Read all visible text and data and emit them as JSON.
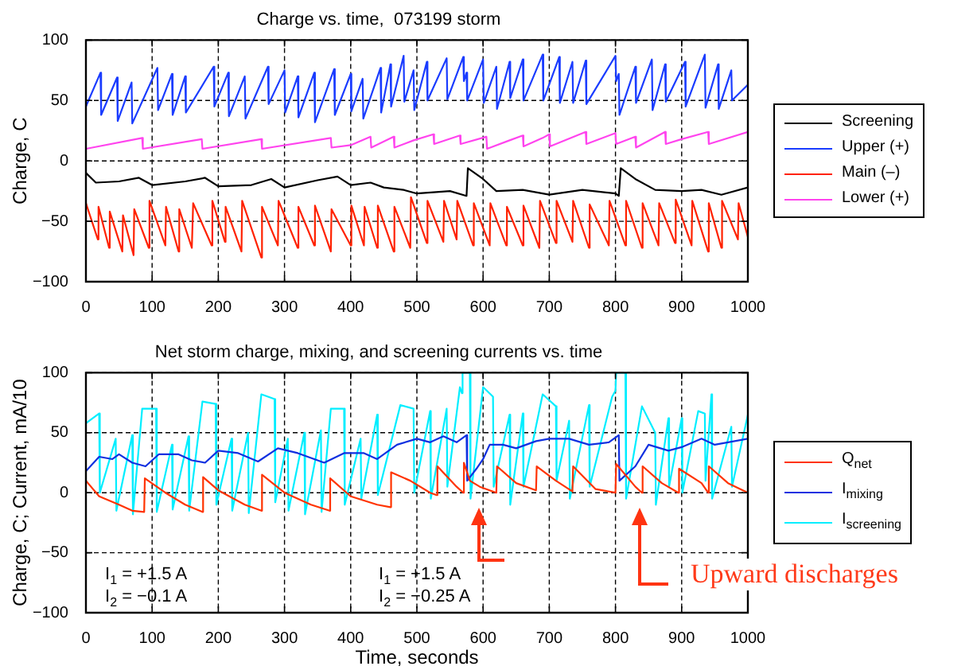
{
  "chart_data": [
    {
      "type": "line",
      "title": "Charge vs. time,  073199 storm",
      "ylabel": "Charge, C",
      "xlim": [
        0,
        1000
      ],
      "xticks": [
        0,
        100,
        200,
        300,
        400,
        500,
        600,
        700,
        800,
        900,
        1000
      ],
      "ylim": [
        -100,
        100
      ],
      "yticks": [
        -100,
        -50,
        0,
        50,
        100
      ],
      "grid": true,
      "legend": "right",
      "marker": "none",
      "series": [
        {
          "name": "Screening",
          "color": "#000000",
          "x": [
            0,
            15,
            50,
            80,
            100,
            150,
            180,
            200,
            250,
            280,
            300,
            350,
            380,
            400,
            430,
            450,
            480,
            500,
            550,
            575,
            577,
            600,
            620,
            660,
            700,
            750,
            800,
            805,
            808,
            830,
            860,
            900,
            930,
            960,
            1000
          ],
          "values": [
            -10,
            -18,
            -17,
            -14,
            -20,
            -17,
            -14,
            -21,
            -20,
            -15,
            -22,
            -16,
            -13,
            -20,
            -18,
            -22,
            -24,
            -27,
            -25,
            -29,
            -6,
            -15,
            -25,
            -24,
            -28,
            -24,
            -27,
            -29,
            -6,
            -15,
            -24,
            -25,
            -24,
            -28,
            -22
          ]
        },
        {
          "name": "Upper (+)",
          "color": "#1a3cff",
          "x": [
            0,
            22,
            23,
            47,
            48,
            69,
            70,
            108,
            109,
            130,
            131,
            150,
            151,
            193,
            194,
            215,
            216,
            240,
            241,
            275,
            276,
            300,
            301,
            320,
            321,
            345,
            346,
            375,
            376,
            400,
            401,
            418,
            419,
            445,
            446,
            460,
            461,
            480,
            481,
            495,
            496,
            515,
            516,
            545,
            546,
            570,
            571,
            575,
            576,
            600,
            601,
            620,
            621,
            640,
            641,
            660,
            661,
            690,
            691,
            715,
            716,
            735,
            736,
            755,
            756,
            800,
            801,
            805,
            806,
            830,
            831,
            855,
            856,
            875,
            876,
            905,
            906,
            935,
            936,
            955,
            956,
            975,
            976,
            1000
          ],
          "values": [
            45,
            73,
            38,
            69,
            33,
            65,
            31,
            77,
            42,
            72,
            38,
            70,
            40,
            78,
            45,
            73,
            37,
            70,
            35,
            78,
            47,
            75,
            40,
            70,
            36,
            73,
            32,
            76,
            38,
            72,
            41,
            68,
            35,
            77,
            40,
            80,
            45,
            87,
            49,
            75,
            42,
            82,
            50,
            85,
            51,
            86,
            66,
            73,
            50,
            84,
            48,
            78,
            43,
            82,
            52,
            84,
            50,
            88,
            50,
            86,
            48,
            82,
            48,
            83,
            47,
            87,
            66,
            72,
            38,
            78,
            48,
            84,
            42,
            80,
            49,
            82,
            45,
            88,
            44,
            80,
            43,
            75,
            50,
            63
          ]
        },
        {
          "name": "Main (–)",
          "color": "#ff2200",
          "x": [
            0,
            18,
            19,
            35,
            36,
            55,
            56,
            72,
            73,
            95,
            96,
            120,
            121,
            140,
            141,
            160,
            162,
            190,
            191,
            210,
            211,
            235,
            236,
            265,
            266,
            290,
            291,
            320,
            321,
            345,
            346,
            370,
            371,
            400,
            401,
            420,
            421,
            440,
            441,
            465,
            466,
            490,
            491,
            515,
            516,
            540,
            541,
            560,
            561,
            585,
            586,
            610,
            611,
            635,
            636,
            660,
            661,
            685,
            686,
            710,
            711,
            735,
            736,
            760,
            761,
            790,
            791,
            815,
            816,
            840,
            841,
            865,
            866,
            890,
            891,
            915,
            916,
            940,
            941,
            960,
            961,
            985,
            986,
            1000
          ],
          "values": [
            -35,
            -65,
            -38,
            -72,
            -42,
            -75,
            -45,
            -78,
            -40,
            -72,
            -33,
            -70,
            -38,
            -75,
            -40,
            -72,
            -35,
            -70,
            -33,
            -67,
            -38,
            -75,
            -33,
            -80,
            -38,
            -70,
            -33,
            -72,
            -38,
            -70,
            -37,
            -75,
            -40,
            -70,
            -37,
            -70,
            -38,
            -72,
            -37,
            -75,
            -38,
            -72,
            -30,
            -68,
            -33,
            -67,
            -33,
            -65,
            -33,
            -70,
            -35,
            -70,
            -35,
            -70,
            -38,
            -70,
            -37,
            -72,
            -33,
            -68,
            -33,
            -67,
            -33,
            -72,
            -36,
            -70,
            -33,
            -70,
            -33,
            -72,
            -35,
            -70,
            -35,
            -68,
            -32,
            -70,
            -33,
            -75,
            -35,
            -72,
            -33,
            -65,
            -35,
            -63
          ]
        },
        {
          "name": "Lower (+)",
          "color": "#ff44ee",
          "x": [
            0,
            85,
            86,
            175,
            176,
            265,
            266,
            370,
            371,
            400,
            430,
            431,
            465,
            466,
            495,
            525,
            526,
            565,
            566,
            605,
            606,
            640,
            660,
            661,
            690,
            700,
            701,
            755,
            756,
            800,
            801,
            830,
            831,
            875,
            876,
            900,
            940,
            941,
            1000
          ],
          "values": [
            10,
            19,
            10,
            18,
            10,
            18,
            10,
            19,
            11,
            13,
            20,
            11,
            20,
            11,
            17,
            22,
            14,
            21,
            14,
            20,
            10,
            17,
            21,
            12,
            19,
            22,
            12,
            24,
            14,
            23,
            14,
            20,
            11,
            24,
            14,
            18,
            24,
            14,
            24
          ]
        }
      ]
    },
    {
      "type": "line",
      "title": "Net storm charge, mixing, and screening currents vs. time",
      "xlabel": "Time, seconds",
      "ylabel": "Charge, C; Current, mA/10",
      "xlim": [
        0,
        1000
      ],
      "xticks": [
        0,
        100,
        200,
        300,
        400,
        500,
        600,
        700,
        800,
        900,
        1000
      ],
      "ylim": [
        -100,
        100
      ],
      "yticks": [
        -100,
        -50,
        0,
        50,
        100
      ],
      "grid": true,
      "legend": "right",
      "marker": "none",
      "annotations": [
        "I$_{1}$ = +1.5 A",
        "I$_{2}$ = −0.1 A",
        "I$_{1}$ = +1.5 A",
        "I$_{2}$ = −0.25 A",
        "Upward discharges"
      ],
      "series": [
        {
          "name": "Q$_{net}$",
          "color": "#ff3300",
          "x": [
            0,
            20,
            50,
            70,
            88,
            89,
            120,
            150,
            176,
            177,
            200,
            240,
            265,
            266,
            300,
            340,
            368,
            369,
            400,
            440,
            460,
            461,
            490,
            520,
            530,
            531,
            560,
            570,
            571,
            580,
            595,
            620,
            621,
            650,
            680,
            681,
            710,
            735,
            736,
            770,
            800,
            801,
            830,
            840,
            841,
            870,
            895,
            896,
            930,
            940,
            941,
            970,
            1000
          ],
          "values": [
            10,
            -3,
            -10,
            -15,
            -16,
            12,
            0,
            -10,
            -16,
            13,
            2,
            -10,
            -15,
            15,
            0,
            -10,
            -15,
            12,
            -3,
            -10,
            -12,
            17,
            10,
            0,
            -2,
            22,
            5,
            0,
            25,
            10,
            5,
            0,
            22,
            8,
            2,
            22,
            10,
            1,
            22,
            3,
            0,
            24,
            5,
            0,
            22,
            8,
            0,
            20,
            8,
            0,
            22,
            8,
            0
          ]
        },
        {
          "name": "I$_{mixing}$",
          "color": "#1030e0",
          "x": [
            0,
            20,
            40,
            50,
            70,
            90,
            110,
            140,
            160,
            180,
            200,
            230,
            260,
            290,
            320,
            360,
            390,
            420,
            440,
            470,
            500,
            520,
            540,
            560,
            575,
            576,
            590,
            600,
            610,
            630,
            650,
            680,
            700,
            730,
            760,
            790,
            805,
            806,
            830,
            850,
            880,
            900,
            930,
            950,
            1000
          ],
          "values": [
            18,
            30,
            28,
            32,
            25,
            22,
            32,
            32,
            27,
            25,
            35,
            33,
            26,
            37,
            33,
            25,
            33,
            33,
            28,
            40,
            45,
            42,
            47,
            42,
            48,
            10,
            20,
            28,
            40,
            40,
            37,
            43,
            45,
            45,
            40,
            42,
            48,
            10,
            22,
            40,
            35,
            38,
            45,
            40,
            45
          ]
        },
        {
          "name": "I$_{screening}$",
          "color": "#00eeff",
          "x": [
            0,
            20,
            21,
            45,
            46,
            70,
            71,
            85,
            106,
            107,
            130,
            131,
            155,
            156,
            176,
            196,
            197,
            220,
            221,
            245,
            246,
            265,
            285,
            286,
            305,
            306,
            330,
            331,
            355,
            356,
            370,
            390,
            391,
            415,
            416,
            440,
            441,
            475,
            495,
            496,
            520,
            521,
            545,
            546,
            565,
            568,
            569,
            580,
            581,
            600,
            615,
            616,
            640,
            641,
            660,
            661,
            690,
            710,
            711,
            730,
            731,
            760,
            761,
            795,
            800,
            801,
            815,
            816,
            840,
            860,
            861,
            880,
            881,
            900,
            901,
            925,
            935,
            936,
            945,
            946,
            975,
            976,
            1000
          ],
          "values": [
            58,
            66,
            0,
            45,
            -15,
            48,
            -18,
            70,
            70,
            -16,
            40,
            -14,
            47,
            -15,
            76,
            74,
            -10,
            45,
            -15,
            50,
            -17,
            82,
            78,
            -8,
            45,
            -15,
            50,
            -18,
            52,
            -16,
            70,
            70,
            -10,
            45,
            -5,
            65,
            -2,
            73,
            70,
            0,
            68,
            -5,
            70,
            5,
            88,
            83,
            100,
            100,
            -5,
            88,
            80,
            5,
            65,
            -10,
            66,
            5,
            82,
            72,
            10,
            60,
            -5,
            73,
            5,
            80,
            85,
            100,
            100,
            -5,
            72,
            50,
            -10,
            62,
            5,
            62,
            0,
            68,
            66,
            10,
            82,
            -5,
            55,
            5,
            65
          ]
        }
      ]
    }
  ]
}
